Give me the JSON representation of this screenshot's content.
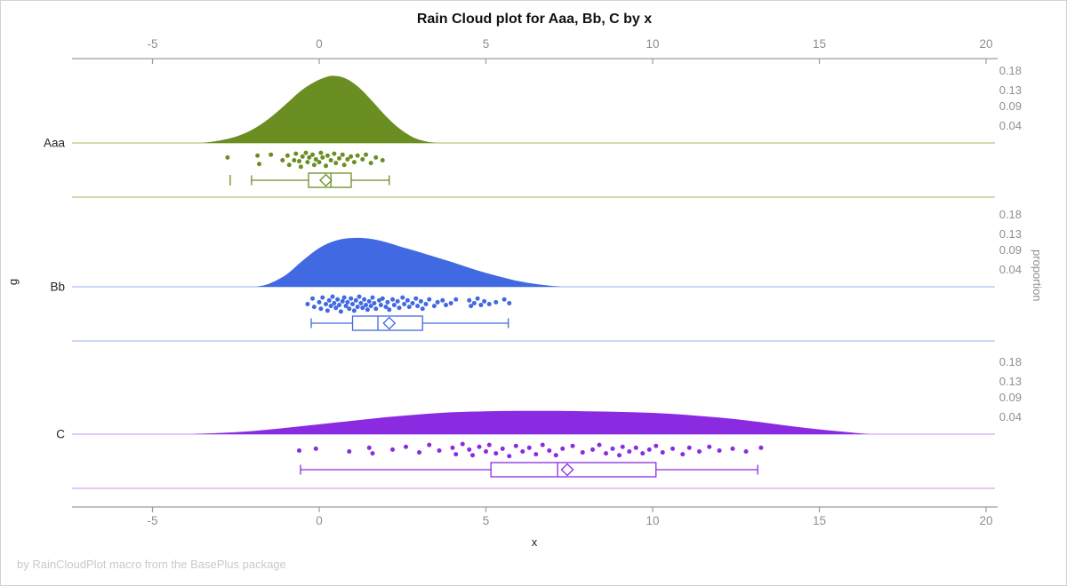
{
  "title": "Rain Cloud plot for Aaa, Bb, C by x",
  "footer": "by RainCloudPlot macro from the BasePlus package",
  "axes": {
    "x_title": "x",
    "y_title": "g",
    "y2_title": "proportion",
    "x_ticks": [
      -5,
      0,
      5,
      10,
      15,
      20
    ],
    "proportion_ticks": [
      0.18,
      0.13,
      0.09,
      0.04
    ]
  },
  "colors": {
    "axis_line": "#9c9c9c",
    "tick_label": "#8f8f8f",
    "border": "#d2d2d2",
    "footer_text": "#c9c9c9"
  },
  "chart_data": {
    "type": "raincloud",
    "x_axis_range": [
      -7.4,
      20.3
    ],
    "proportion_axis_max": 0.2,
    "groups": [
      {
        "label": "Aaa",
        "fill": "#6b8e23",
        "pale_line": "#c2cf93",
        "density": [
          [
            -3.5,
            0.0
          ],
          [
            -3.0,
            0.006
          ],
          [
            -2.5,
            0.016
          ],
          [
            -2.0,
            0.034
          ],
          [
            -1.5,
            0.062
          ],
          [
            -1.0,
            0.098
          ],
          [
            -0.5,
            0.135
          ],
          [
            0.0,
            0.16
          ],
          [
            0.4,
            0.17
          ],
          [
            0.8,
            0.163
          ],
          [
            1.2,
            0.14
          ],
          [
            1.6,
            0.105
          ],
          [
            2.0,
            0.068
          ],
          [
            2.4,
            0.037
          ],
          [
            2.8,
            0.015
          ],
          [
            3.2,
            0.004
          ],
          [
            3.5,
            0.0
          ]
        ],
        "box": {
          "whisker_low": -2.03,
          "q1": -0.32,
          "median": 0.35,
          "q3": 0.96,
          "whisker_high": 2.1,
          "mean": 0.2,
          "outliers": [
            -2.67
          ]
        },
        "points": [
          [
            -2.75,
            0.35
          ],
          [
            -1.85,
            0.25
          ],
          [
            -1.8,
            0.7
          ],
          [
            -1.45,
            0.2
          ],
          [
            -1.1,
            0.5
          ],
          [
            -0.95,
            0.25
          ],
          [
            -0.9,
            0.75
          ],
          [
            -0.75,
            0.5
          ],
          [
            -0.7,
            0.15
          ],
          [
            -0.6,
            0.55
          ],
          [
            -0.55,
            0.85
          ],
          [
            -0.5,
            0.3
          ],
          [
            -0.4,
            0.1
          ],
          [
            -0.35,
            0.6
          ],
          [
            -0.3,
            0.35
          ],
          [
            -0.2,
            0.2
          ],
          [
            -0.15,
            0.75
          ],
          [
            -0.1,
            0.45
          ],
          [
            0.0,
            0.6
          ],
          [
            0.05,
            0.1
          ],
          [
            0.1,
            0.35
          ],
          [
            0.2,
            0.8
          ],
          [
            0.25,
            0.25
          ],
          [
            0.35,
            0.5
          ],
          [
            0.45,
            0.15
          ],
          [
            0.5,
            0.65
          ],
          [
            0.6,
            0.4
          ],
          [
            0.7,
            0.2
          ],
          [
            0.75,
            0.75
          ],
          [
            0.85,
            0.45
          ],
          [
            0.95,
            0.3
          ],
          [
            1.05,
            0.6
          ],
          [
            1.15,
            0.25
          ],
          [
            1.3,
            0.45
          ],
          [
            1.4,
            0.2
          ],
          [
            1.55,
            0.65
          ],
          [
            1.7,
            0.35
          ],
          [
            1.9,
            0.5
          ]
        ]
      },
      {
        "label": "Bb",
        "fill": "#4169e1",
        "pale_line": "#bccbf2",
        "density": [
          [
            -1.9,
            0.0
          ],
          [
            -1.5,
            0.008
          ],
          [
            -1.0,
            0.03
          ],
          [
            -0.5,
            0.066
          ],
          [
            0.0,
            0.098
          ],
          [
            0.5,
            0.117
          ],
          [
            1.0,
            0.1235
          ],
          [
            1.5,
            0.122
          ],
          [
            2.0,
            0.113
          ],
          [
            2.5,
            0.1
          ],
          [
            3.0,
            0.088
          ],
          [
            3.5,
            0.075
          ],
          [
            4.0,
            0.062
          ],
          [
            4.5,
            0.048
          ],
          [
            5.0,
            0.035
          ],
          [
            5.5,
            0.024
          ],
          [
            6.0,
            0.014
          ],
          [
            6.5,
            0.007
          ],
          [
            7.0,
            0.002
          ],
          [
            7.3,
            0.0
          ]
        ],
        "box": {
          "whisker_low": -0.24,
          "q1": 1.0,
          "median": 1.76,
          "q3": 3.1,
          "whisker_high": 5.67,
          "mean": 2.1,
          "outliers": []
        },
        "points": [
          [
            -0.35,
            0.5
          ],
          [
            -0.2,
            0.2
          ],
          [
            -0.15,
            0.65
          ],
          [
            0.0,
            0.4
          ],
          [
            0.05,
            0.75
          ],
          [
            0.1,
            0.15
          ],
          [
            0.2,
            0.5
          ],
          [
            0.25,
            0.85
          ],
          [
            0.3,
            0.3
          ],
          [
            0.35,
            0.6
          ],
          [
            0.4,
            0.1
          ],
          [
            0.45,
            0.45
          ],
          [
            0.5,
            0.7
          ],
          [
            0.55,
            0.25
          ],
          [
            0.6,
            0.55
          ],
          [
            0.65,
            0.9
          ],
          [
            0.7,
            0.35
          ],
          [
            0.75,
            0.15
          ],
          [
            0.8,
            0.6
          ],
          [
            0.85,
            0.4
          ],
          [
            0.9,
            0.75
          ],
          [
            0.95,
            0.2
          ],
          [
            1.0,
            0.5
          ],
          [
            1.05,
            0.85
          ],
          [
            1.1,
            0.3
          ],
          [
            1.15,
            0.65
          ],
          [
            1.2,
            0.1
          ],
          [
            1.25,
            0.45
          ],
          [
            1.3,
            0.7
          ],
          [
            1.35,
            0.25
          ],
          [
            1.4,
            0.55
          ],
          [
            1.45,
            0.8
          ],
          [
            1.5,
            0.35
          ],
          [
            1.55,
            0.6
          ],
          [
            1.6,
            0.15
          ],
          [
            1.65,
            0.45
          ],
          [
            1.7,
            0.75
          ],
          [
            1.8,
            0.3
          ],
          [
            1.85,
            0.55
          ],
          [
            1.9,
            0.2
          ],
          [
            2.0,
            0.65
          ],
          [
            2.05,
            0.4
          ],
          [
            2.1,
            0.8
          ],
          [
            2.2,
            0.25
          ],
          [
            2.25,
            0.55
          ],
          [
            2.35,
            0.35
          ],
          [
            2.4,
            0.7
          ],
          [
            2.5,
            0.15
          ],
          [
            2.55,
            0.5
          ],
          [
            2.65,
            0.3
          ],
          [
            2.7,
            0.65
          ],
          [
            2.8,
            0.45
          ],
          [
            2.9,
            0.2
          ],
          [
            2.95,
            0.6
          ],
          [
            3.05,
            0.35
          ],
          [
            3.1,
            0.75
          ],
          [
            3.2,
            0.5
          ],
          [
            3.3,
            0.25
          ],
          [
            3.45,
            0.6
          ],
          [
            3.55,
            0.4
          ],
          [
            3.7,
            0.3
          ],
          [
            3.8,
            0.55
          ],
          [
            3.95,
            0.45
          ],
          [
            4.1,
            0.25
          ],
          [
            4.5,
            0.3
          ],
          [
            4.55,
            0.6
          ],
          [
            4.65,
            0.45
          ],
          [
            4.75,
            0.2
          ],
          [
            4.85,
            0.55
          ],
          [
            4.95,
            0.35
          ],
          [
            5.1,
            0.5
          ],
          [
            5.3,
            0.4
          ],
          [
            5.55,
            0.25
          ],
          [
            5.7,
            0.45
          ]
        ]
      },
      {
        "label": "C",
        "fill": "#8a2be2",
        "pale_line": "#d9b6f2",
        "density": [
          [
            -3.8,
            0.0
          ],
          [
            -3.0,
            0.003
          ],
          [
            -2.0,
            0.008
          ],
          [
            -1.0,
            0.016
          ],
          [
            0.0,
            0.025
          ],
          [
            1.0,
            0.034
          ],
          [
            2.0,
            0.043
          ],
          [
            3.0,
            0.05
          ],
          [
            4.0,
            0.0555
          ],
          [
            5.0,
            0.058
          ],
          [
            6.0,
            0.059
          ],
          [
            7.0,
            0.059
          ],
          [
            8.0,
            0.058
          ],
          [
            9.0,
            0.0565
          ],
          [
            10.0,
            0.054
          ],
          [
            11.0,
            0.049
          ],
          [
            12.0,
            0.042
          ],
          [
            13.0,
            0.033
          ],
          [
            14.0,
            0.022
          ],
          [
            15.0,
            0.012
          ],
          [
            16.0,
            0.004
          ],
          [
            16.5,
            0.0
          ]
        ],
        "box": {
          "whisker_low": -0.56,
          "q1": 5.15,
          "median": 7.15,
          "q3": 10.1,
          "whisker_high": 13.15,
          "mean": 7.44,
          "outliers": []
        },
        "points": [
          [
            -0.6,
            0.45
          ],
          [
            -0.1,
            0.35
          ],
          [
            0.9,
            0.5
          ],
          [
            1.5,
            0.3
          ],
          [
            1.6,
            0.6
          ],
          [
            2.2,
            0.4
          ],
          [
            2.6,
            0.25
          ],
          [
            3.0,
            0.55
          ],
          [
            3.3,
            0.15
          ],
          [
            3.6,
            0.45
          ],
          [
            4.0,
            0.3
          ],
          [
            4.1,
            0.65
          ],
          [
            4.3,
            0.1
          ],
          [
            4.5,
            0.4
          ],
          [
            4.6,
            0.7
          ],
          [
            4.8,
            0.25
          ],
          [
            5.0,
            0.5
          ],
          [
            5.1,
            0.15
          ],
          [
            5.3,
            0.6
          ],
          [
            5.5,
            0.35
          ],
          [
            5.7,
            0.75
          ],
          [
            5.9,
            0.2
          ],
          [
            6.1,
            0.5
          ],
          [
            6.3,
            0.3
          ],
          [
            6.5,
            0.65
          ],
          [
            6.7,
            0.15
          ],
          [
            6.9,
            0.45
          ],
          [
            7.1,
            0.7
          ],
          [
            7.3,
            0.35
          ],
          [
            7.6,
            0.2
          ],
          [
            7.9,
            0.55
          ],
          [
            8.2,
            0.4
          ],
          [
            8.4,
            0.15
          ],
          [
            8.6,
            0.6
          ],
          [
            8.8,
            0.35
          ],
          [
            9.0,
            0.7
          ],
          [
            9.1,
            0.25
          ],
          [
            9.3,
            0.5
          ],
          [
            9.5,
            0.3
          ],
          [
            9.7,
            0.6
          ],
          [
            9.9,
            0.4
          ],
          [
            10.1,
            0.2
          ],
          [
            10.3,
            0.55
          ],
          [
            10.6,
            0.35
          ],
          [
            10.9,
            0.65
          ],
          [
            11.1,
            0.3
          ],
          [
            11.4,
            0.5
          ],
          [
            11.7,
            0.25
          ],
          [
            12.0,
            0.45
          ],
          [
            12.4,
            0.35
          ],
          [
            12.8,
            0.5
          ],
          [
            13.25,
            0.3
          ]
        ]
      }
    ]
  }
}
